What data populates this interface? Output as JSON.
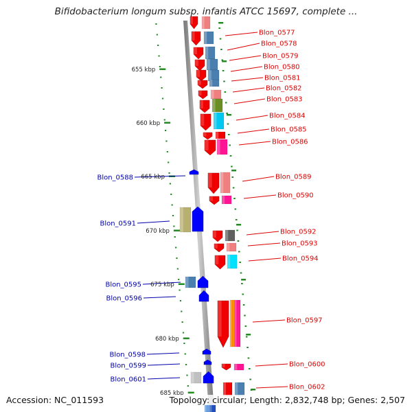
{
  "title": "Bifidobacterium longum subsp. infantis ATCC 15697, complete ...",
  "footer": {
    "accession": "Accession: NC_011593",
    "topology": "Topology: circular; Length: 2,832,748 bp; Genes: 2,507"
  },
  "colors": {
    "forward_label": "#dd0000",
    "reverse_label": "#0000aa",
    "tick": "#228b22",
    "backbone": "#888888"
  },
  "kbp_ticks": [
    "655 kbp",
    "660 kbp",
    "665 kbp",
    "670 kbp",
    "675 kbp",
    "680 kbp",
    "685 kbp"
  ],
  "forward_genes": [
    {
      "name": "Blon_0577"
    },
    {
      "name": "Blon_0578"
    },
    {
      "name": "Blon_0579"
    },
    {
      "name": "Blon_0580"
    },
    {
      "name": "Blon_0581"
    },
    {
      "name": "Blon_0582"
    },
    {
      "name": "Blon_0583"
    },
    {
      "name": "Blon_0584"
    },
    {
      "name": "Blon_0585"
    },
    {
      "name": "Blon_0586"
    },
    {
      "name": "Blon_0589"
    },
    {
      "name": "Blon_0590"
    },
    {
      "name": "Blon_0592"
    },
    {
      "name": "Blon_0593"
    },
    {
      "name": "Blon_0594"
    },
    {
      "name": "Blon_0597"
    },
    {
      "name": "Blon_0600"
    },
    {
      "name": "Blon_0602"
    }
  ],
  "reverse_genes": [
    {
      "name": "Blon_0588"
    },
    {
      "name": "Blon_0591"
    },
    {
      "name": "Blon_0595"
    },
    {
      "name": "Blon_0596"
    },
    {
      "name": "Blon_0598"
    },
    {
      "name": "Blon_0599"
    },
    {
      "name": "Blon_0601"
    }
  ]
}
